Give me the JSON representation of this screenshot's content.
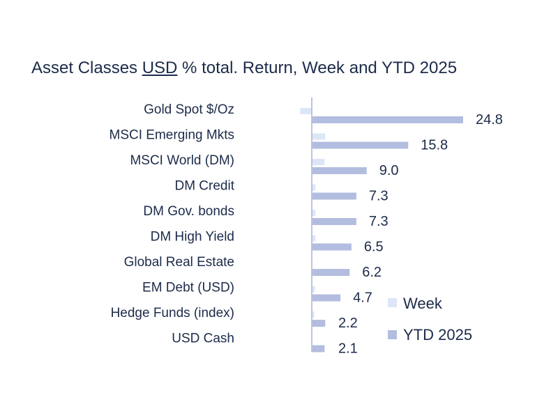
{
  "chart_data": {
    "type": "bar",
    "orientation": "horizontal",
    "title": {
      "before": "Asset Classes ",
      "underlined": "USD",
      "after": " % total. Return, Week and YTD 2025"
    },
    "categories": [
      "Gold Spot   $/Oz",
      "MSCI Emerging Mkts",
      "MSCI World (DM)",
      "DM Credit",
      "DM Gov. bonds",
      "DM High Yield",
      "Global Real Estate",
      "EM Debt (USD)",
      "Hedge Funds (index)",
      "USD Cash"
    ],
    "series": [
      {
        "name": "Week",
        "color": "#dce6f7",
        "values": [
          -1.9,
          2.2,
          2.1,
          0.6,
          0.6,
          0.6,
          0.1,
          0.5,
          0.4,
          0.1
        ]
      },
      {
        "name": "YTD 2025",
        "color": "#b3bddf",
        "values": [
          24.8,
          15.8,
          9.0,
          7.3,
          7.3,
          6.5,
          6.2,
          4.7,
          2.2,
          2.1
        ]
      }
    ],
    "data_labels": [
      "24.8",
      "15.8",
      "9.0",
      "7.3",
      "7.3",
      "6.5",
      "6.2",
      "4.7",
      "2.2",
      "2.1"
    ],
    "legend": {
      "position": "bottom-right"
    },
    "grid": false
  }
}
